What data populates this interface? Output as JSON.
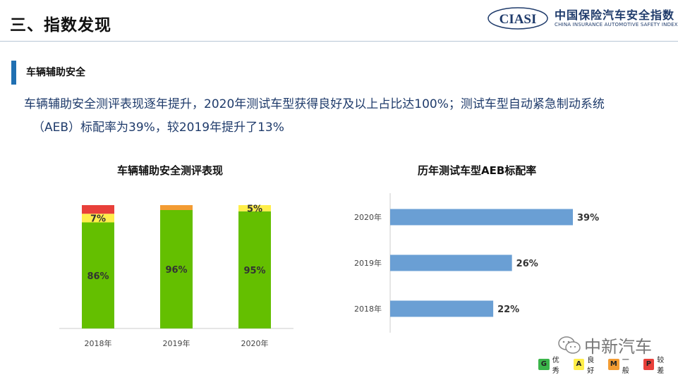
{
  "header": {
    "title": "三、指数发现",
    "logo_text": "CIASI",
    "brand_cn": "中国保险汽车安全指数",
    "brand_en": "CHINA INSURANCE AUTOMOTIVE SAFETY INDEX"
  },
  "section": {
    "title": "车辆辅助安全",
    "summary_line1": "车辆辅助安全测评表现逐年提升，2020年测试车型获得良好及以上占比达100%；测试车型自动紧急制动系统",
    "summary_line2": "（AEB）标配率为39%，较2019年提升了13%"
  },
  "chart_data": [
    {
      "type": "bar",
      "stacked": true,
      "title": "车辆辅助安全测评表现",
      "categories": [
        "2018年",
        "2019年",
        "2020年"
      ],
      "series": [
        {
          "name": "优秀",
          "values": [
            86,
            96,
            95
          ],
          "color": "#64bf00",
          "labels": [
            "86%",
            "96%",
            "95%"
          ]
        },
        {
          "name": "良好",
          "values": [
            7,
            0,
            5
          ],
          "color": "#ffee4a",
          "labels": [
            "7%",
            "",
            "5%"
          ]
        },
        {
          "name": "一般",
          "values": [
            0,
            4,
            0
          ],
          "color": "#f39c33",
          "labels": [
            "",
            "",
            ""
          ]
        },
        {
          "name": "较差",
          "values": [
            7,
            0,
            0
          ],
          "color": "#e8403a",
          "labels": [
            "",
            "",
            ""
          ]
        }
      ],
      "ylim": [
        0,
        100
      ]
    },
    {
      "type": "bar",
      "orientation": "horizontal",
      "title": "历年测试车型AEB标配率",
      "categories": [
        "2020年",
        "2019年",
        "2018年"
      ],
      "values": [
        39,
        26,
        22
      ],
      "labels": [
        "39%",
        "26%",
        "22%"
      ],
      "color": "#6a9fd4",
      "xlim": [
        0,
        60
      ]
    }
  ],
  "legend": [
    {
      "key": "G",
      "label": "优秀",
      "color": "#3bb54a"
    },
    {
      "key": "A",
      "label": "良好",
      "color": "#ffee4a"
    },
    {
      "key": "M",
      "label": "一般",
      "color": "#f39c33"
    },
    {
      "key": "P",
      "label": "较差",
      "color": "#e8403a"
    }
  ],
  "watermark": {
    "text": "中新汽车"
  }
}
